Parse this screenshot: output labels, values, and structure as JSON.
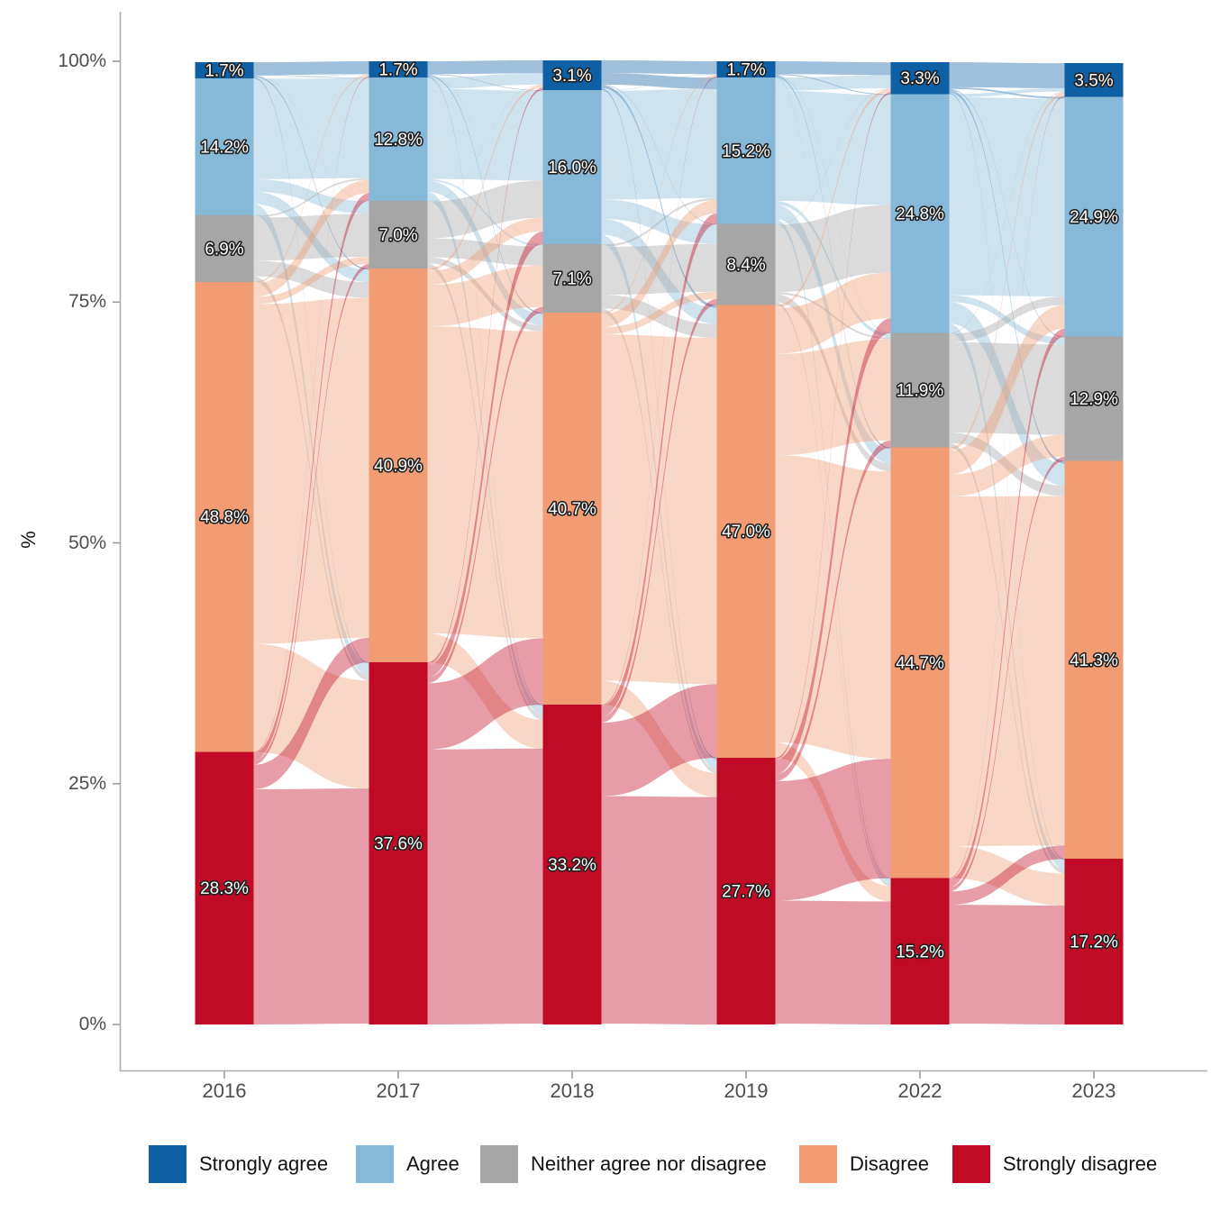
{
  "chart_data": {
    "type": "alluvial",
    "title": "",
    "xlabel": "",
    "ylabel": "%",
    "x": [
      "2016",
      "2017",
      "2018",
      "2019",
      "2022",
      "2023"
    ],
    "y_tick_labels": [
      "0%",
      "25%",
      "50%",
      "75%",
      "100%"
    ],
    "y_ticks_pct": [
      0,
      25,
      50,
      75,
      100
    ],
    "ylim": [
      0,
      100
    ],
    "legend_position": "bottom",
    "grid": "off",
    "bar_label_format": "one decimal + %",
    "series": [
      {
        "name": "Strongly agree",
        "color": "#0E5FA3",
        "values": [
          1.7,
          1.7,
          3.1,
          1.7,
          3.3,
          3.5
        ]
      },
      {
        "name": "Agree",
        "color": "#86B8D8",
        "values": [
          14.2,
          12.8,
          16.0,
          15.2,
          24.8,
          24.9
        ]
      },
      {
        "name": "Neither agree nor disagree",
        "color": "#A6A6A6",
        "values": [
          6.9,
          7.0,
          7.1,
          8.4,
          11.9,
          12.9
        ]
      },
      {
        "name": "Disagree",
        "color": "#F19C73",
        "values": [
          48.8,
          40.9,
          40.7,
          47.0,
          44.7,
          41.3
        ]
      },
      {
        "name": "Strongly disagree",
        "color": "#C00A26",
        "values": [
          28.3,
          37.6,
          33.2,
          27.7,
          15.2,
          17.2
        ]
      }
    ]
  }
}
